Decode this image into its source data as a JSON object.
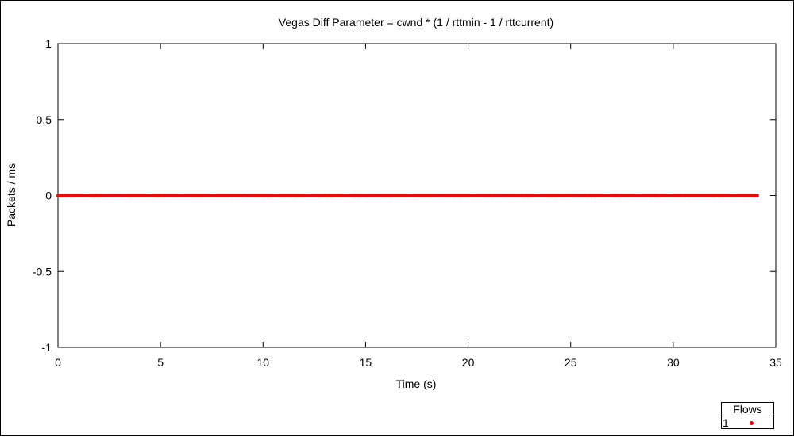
{
  "chart_data": {
    "type": "scatter",
    "title": "Vegas Diff Parameter = cwnd * (1 / rttmin - 1 / rttcurrent)",
    "xlabel": "Time (s)",
    "ylabel": "Packets / ms",
    "xlim": [
      0,
      35
    ],
    "ylim": [
      -1,
      1
    ],
    "xticks": [
      {
        "value": 0,
        "label": "0"
      },
      {
        "value": 5,
        "label": "5"
      },
      {
        "value": 10,
        "label": "10"
      },
      {
        "value": 15,
        "label": "15"
      },
      {
        "value": 20,
        "label": "20"
      },
      {
        "value": 25,
        "label": "25"
      },
      {
        "value": 30,
        "label": "30"
      },
      {
        "value": 35,
        "label": "35"
      }
    ],
    "yticks": [
      {
        "value": -1,
        "label": "-1"
      },
      {
        "value": -0.5,
        "label": "-0.5"
      },
      {
        "value": 0,
        "label": "0"
      },
      {
        "value": 0.5,
        "label": "0.5"
      },
      {
        "value": 1,
        "label": "1"
      }
    ],
    "grid": false,
    "legend": {
      "title": "Flows",
      "placement": "bottom-right"
    },
    "series": [
      {
        "name": "1",
        "color": "#ff0000",
        "x_range": [
          0,
          34.1
        ],
        "sample_interval": 0.1,
        "constant_y": 0
      }
    ]
  }
}
